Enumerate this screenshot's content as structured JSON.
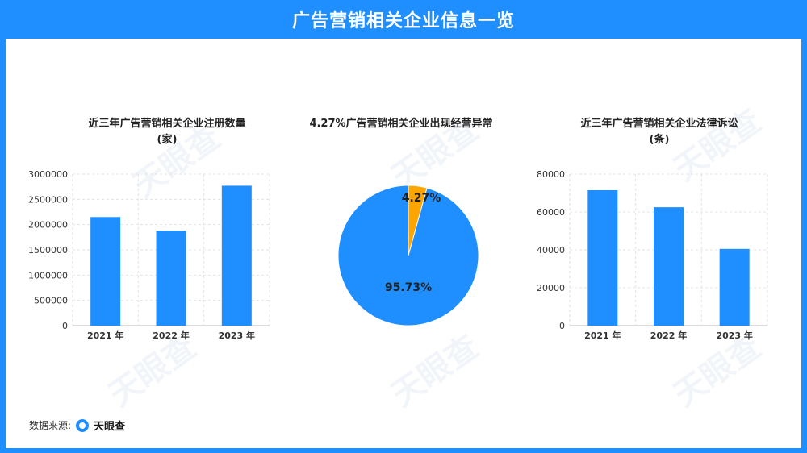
{
  "header": {
    "title": "广告营销相关企业信息一览"
  },
  "watermark": {
    "text": "天眼查"
  },
  "footer": {
    "source_label": "数据来源:",
    "logo_text": "天眼查"
  },
  "colors": {
    "primary": "#1f8fff",
    "accent": "#ffa500",
    "background": "#1f8fff"
  },
  "chart_data": [
    {
      "type": "bar",
      "title_line1": "近三年广告营销相关企业注册数量",
      "title_line2": "(家)",
      "categories": [
        "2021 年",
        "2022 年",
        "2023 年"
      ],
      "values": [
        2150000,
        1880000,
        2770000
      ],
      "ylim": [
        0,
        3000000
      ],
      "yticks": [
        0,
        500000,
        1000000,
        1500000,
        2000000,
        2500000,
        3000000
      ],
      "grid": true
    },
    {
      "type": "pie",
      "title_line1": "4.27%广告营销相关企业出现经营异常",
      "slices": [
        {
          "label": "4.27%",
          "value": 4.27,
          "color": "#ffa500"
        },
        {
          "label": "95.73%",
          "value": 95.73,
          "color": "#1f8fff"
        }
      ]
    },
    {
      "type": "bar",
      "title_line1": "近三年广告营销相关企业法律诉讼",
      "title_line2": "(条)",
      "categories": [
        "2021 年",
        "2022 年",
        "2023 年"
      ],
      "values": [
        71500,
        62500,
        40500
      ],
      "ylim": [
        0,
        80000
      ],
      "yticks": [
        0,
        20000,
        40000,
        60000,
        80000
      ],
      "grid": true
    }
  ]
}
